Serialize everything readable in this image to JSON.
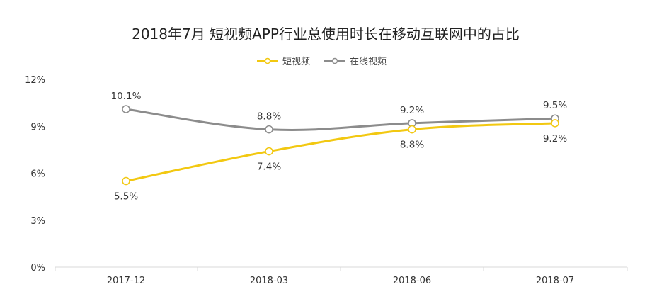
{
  "chart_data": {
    "type": "line",
    "title": "2018年7月 短视频APP行业总使用时长在移动互联网中的占比",
    "categories": [
      "2017-12",
      "2018-03",
      "2018-06",
      "2018-07"
    ],
    "y_ticks": [
      "0%",
      "3%",
      "6%",
      "9%",
      "12%"
    ],
    "ylim": [
      0,
      12
    ],
    "grid": false,
    "legend_position": "top-center",
    "series": [
      {
        "name": "短视频",
        "values": [
          5.5,
          7.4,
          8.8,
          9.2
        ],
        "labels": [
          "5.5%",
          "7.4%",
          "8.8%",
          "9.2%"
        ],
        "label_position": "below",
        "color": "#f2c811"
      },
      {
        "name": "在线视频",
        "values": [
          10.1,
          8.8,
          9.2,
          9.5
        ],
        "labels": [
          "10.1%",
          "8.8%",
          "9.2%",
          "9.5%"
        ],
        "label_position": "above",
        "color": "#8c8c8c"
      }
    ]
  }
}
